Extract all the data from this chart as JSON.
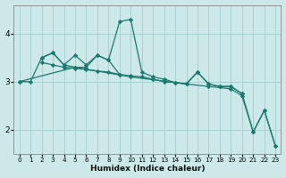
{
  "xlabel": "Humidex (Indice chaleur)",
  "bg_color": "#cce8e8",
  "grid_color": "#aad0d0",
  "line_color": "#1a7a6e",
  "xlim": [
    -0.5,
    23.5
  ],
  "ylim": [
    1.5,
    4.6
  ],
  "yticks": [
    2,
    3,
    4
  ],
  "xticks": [
    0,
    1,
    2,
    3,
    4,
    5,
    6,
    7,
    8,
    9,
    10,
    11,
    12,
    13,
    14,
    15,
    16,
    17,
    18,
    19,
    20,
    21,
    22,
    23
  ],
  "line1_x": [
    0,
    1,
    2,
    3,
    4,
    5,
    6,
    7,
    8,
    9,
    10,
    11,
    12,
    13,
    14,
    15,
    16,
    17,
    18,
    19,
    20,
    21,
    22,
    23
  ],
  "line1_y": [
    3.0,
    3.0,
    3.5,
    3.6,
    3.35,
    3.3,
    3.3,
    3.55,
    3.45,
    4.25,
    4.3,
    3.2,
    3.1,
    3.05,
    2.98,
    2.95,
    3.2,
    2.95,
    2.9,
    2.9,
    2.75,
    1.95,
    2.4,
    1.65
  ],
  "line2_x": [
    2,
    3,
    4,
    5,
    6,
    7,
    8,
    9
  ],
  "line2_y": [
    3.5,
    3.6,
    3.35,
    3.55,
    3.35,
    3.55,
    3.45,
    3.15
  ],
  "line3_x": [
    2,
    3,
    4,
    5,
    6,
    7,
    8,
    9,
    10,
    11,
    12,
    13,
    14,
    15,
    16,
    17,
    18,
    19,
    20
  ],
  "line3_y": [
    3.4,
    3.35,
    3.3,
    3.28,
    3.25,
    3.22,
    3.2,
    3.15,
    3.12,
    3.1,
    3.05,
    3.0,
    2.98,
    2.96,
    3.2,
    2.95,
    2.9,
    2.9,
    2.75
  ],
  "line4_x": [
    0,
    5,
    10,
    15,
    17,
    19,
    20,
    21,
    22,
    23
  ],
  "line4_y": [
    3.0,
    3.3,
    3.1,
    2.95,
    2.9,
    2.85,
    2.7,
    1.95,
    2.4,
    1.65
  ]
}
